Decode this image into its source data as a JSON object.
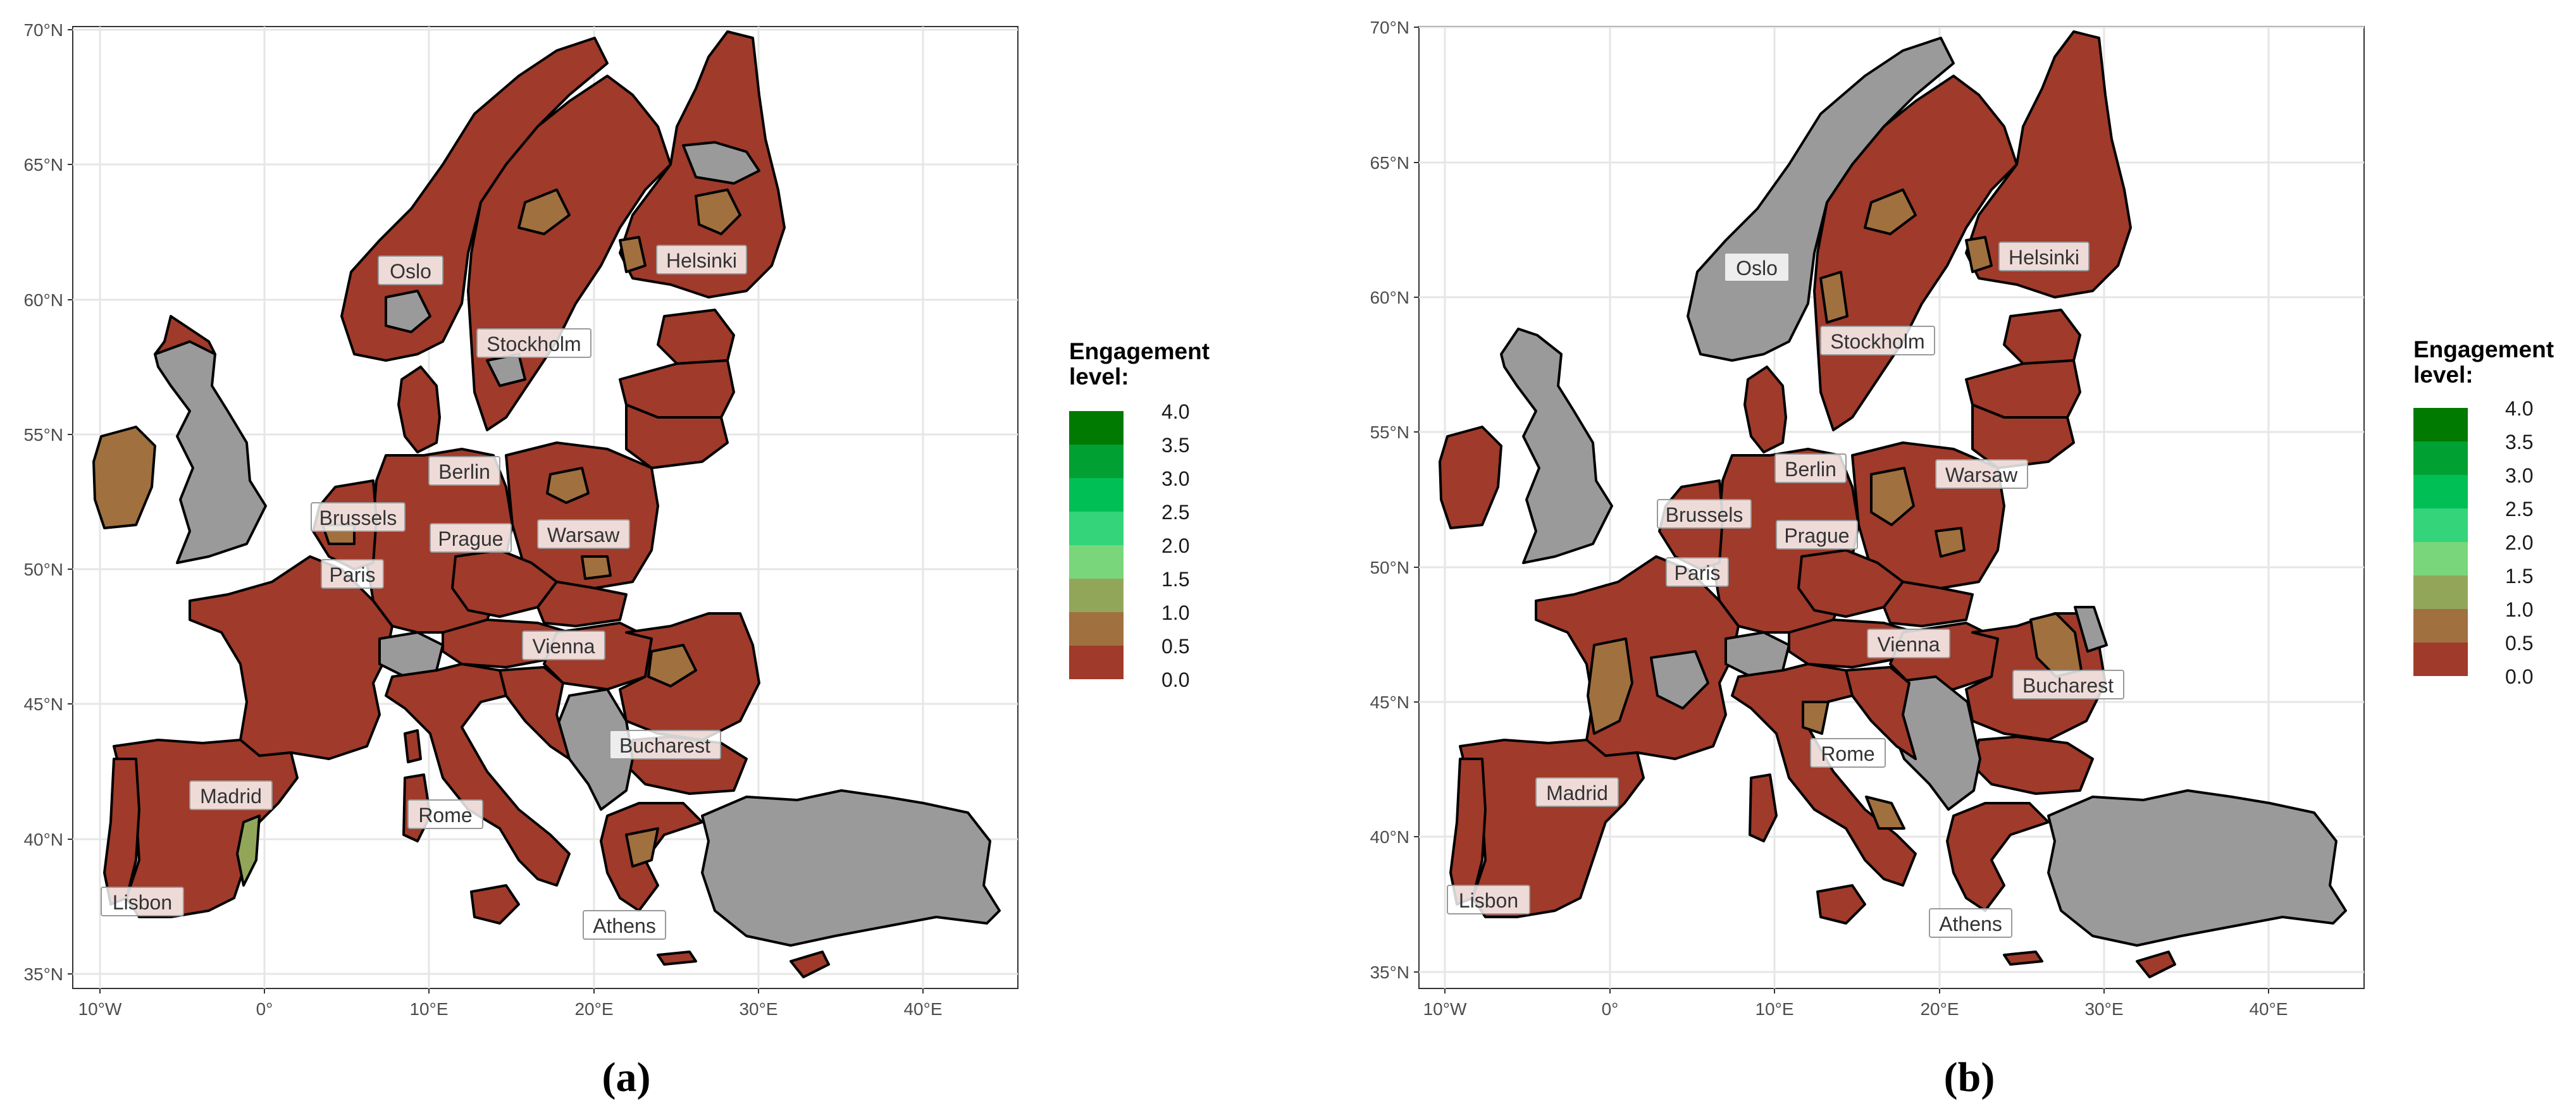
{
  "panels": [
    {
      "id": "a",
      "caption": "(a)",
      "cities": {
        "oslo": "Oslo",
        "helsinki": "Helsinki",
        "stockholm": "Stockholm",
        "berlin": "Berlin",
        "brussels": "Brussels",
        "prague": "Prague",
        "warsaw": "Warsaw",
        "paris": "Paris",
        "vienna": "Vienna",
        "bucharest": "Bucharest",
        "madrid": "Madrid",
        "rome": "Rome",
        "lisbon": "Lisbon",
        "athens": "Athens"
      }
    },
    {
      "id": "b",
      "caption": "(b)",
      "cities": {
        "oslo": "Oslo",
        "helsinki": "Helsinki",
        "stockholm": "Stockholm",
        "berlin": "Berlin",
        "brussels": "Brussels",
        "prague": "Prague",
        "warsaw": "Warsaw",
        "paris": "Paris",
        "vienna": "Vienna",
        "bucharest": "Bucharest",
        "madrid": "Madrid",
        "rome": "Rome",
        "lisbon": "Lisbon",
        "athens": "Athens"
      }
    }
  ],
  "axes": {
    "lat_ticks": [
      "35°N",
      "40°N",
      "45°N",
      "50°N",
      "55°N",
      "60°N",
      "65°N",
      "70°N"
    ],
    "lon_ticks": [
      "10°W",
      "0°",
      "10°E",
      "20°E",
      "30°E",
      "40°E"
    ]
  },
  "legend": {
    "title_line1": "Engagement",
    "title_line2": "level:",
    "ticks": [
      "4.0",
      "3.5",
      "3.0",
      "2.5",
      "2.0",
      "1.5",
      "1.0",
      "0.5",
      "0.0"
    ],
    "colors": [
      "#007a00",
      "#00a033",
      "#00bf55",
      "#33d47a",
      "#7ad67a",
      "#92a65a",
      "#a0703f",
      "#a03a2a"
    ]
  },
  "colors": {
    "low": "#a03a2a",
    "mid": "#a0703f",
    "light": "#92a65a",
    "na": "#9a9a9a",
    "border": "#000000",
    "grid": "#e6e6e6"
  }
}
